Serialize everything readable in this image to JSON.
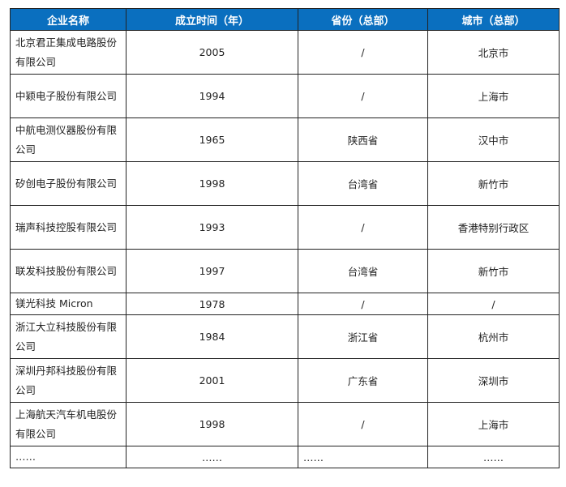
{
  "colors": {
    "header_bg": "#0a6fbf",
    "header_text": "#ffffff"
  },
  "table": {
    "headers": [
      "企业名称",
      "成立时间（年）",
      "省份（总部）",
      "城市（总部）"
    ],
    "rows": [
      [
        "北京君正集成电路股份有限公司",
        "2005",
        "/",
        "北京市"
      ],
      [
        "中颖电子股份有限公司",
        "1994",
        "/",
        "上海市"
      ],
      [
        "中航电测仪器股份有限公司",
        "1965",
        "陕西省",
        "汉中市"
      ],
      [
        "矽创电子股份有限公司",
        "1998",
        "台湾省",
        "新竹市"
      ],
      [
        "瑞声科技控股有限公司",
        "1993",
        "/",
        "香港特别行政区"
      ],
      [
        "联发科技股份有限公司",
        "1997",
        "台湾省",
        "新竹市"
      ],
      [
        "镁光科技 Micron",
        "1978",
        "/",
        "/"
      ],
      [
        "浙江大立科技股份有限公司",
        "1984",
        "浙江省",
        "杭州市"
      ],
      [
        "深圳丹邦科技股份有限公司",
        "2001",
        "广东省",
        "深圳市"
      ],
      [
        "上海航天汽车机电股份有限公司",
        "1998",
        "/",
        "上海市"
      ],
      [
        "……",
        "……",
        "……",
        "……"
      ]
    ]
  }
}
